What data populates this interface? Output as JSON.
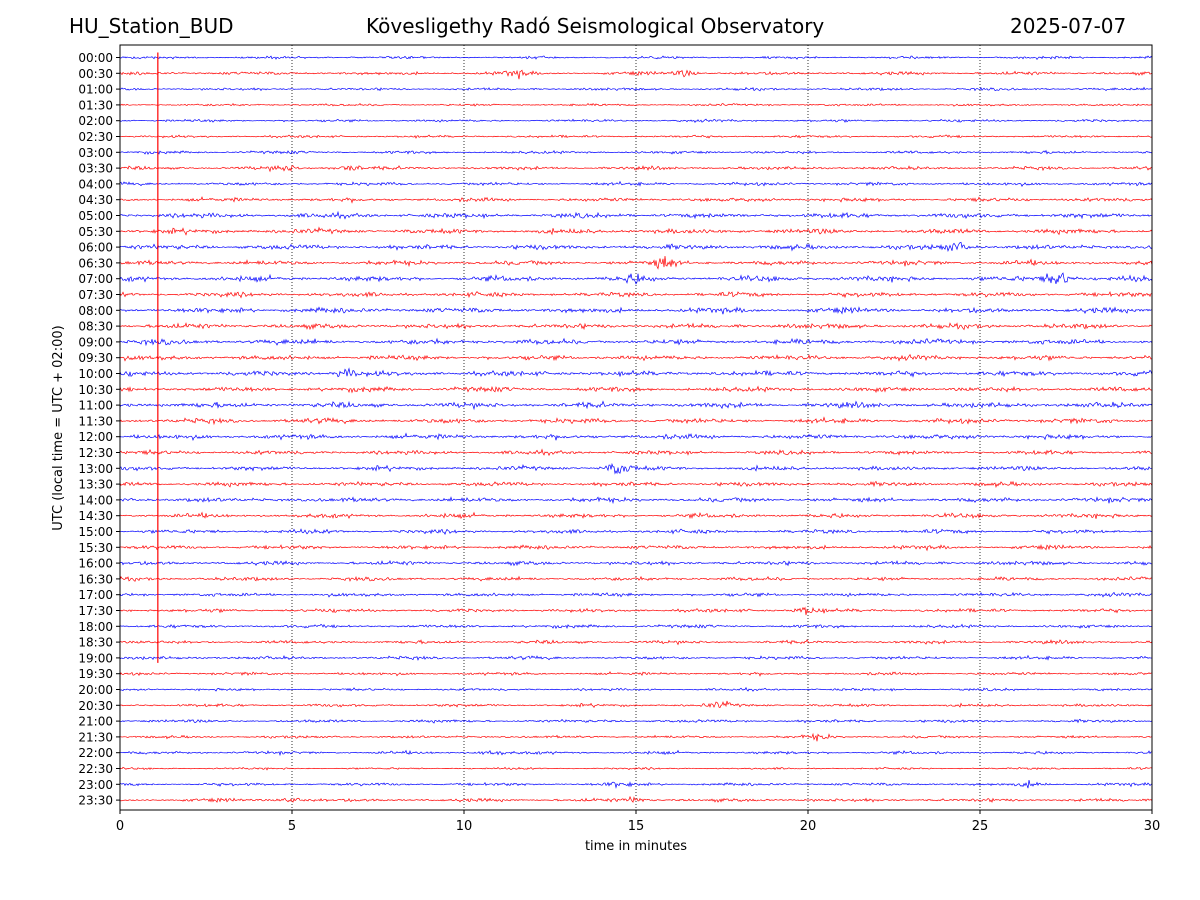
{
  "header": {
    "station": "HU_Station_BUD",
    "observatory": "Kövesligethy Radó Seismological Observatory",
    "date": "2025-07-07"
  },
  "chart_data": {
    "type": "line",
    "title": "Kövesligethy Radó Seismological Observatory",
    "xlabel": "time in minutes",
    "ylabel": "UTC (local time = UTC + 02:00)",
    "xlim": [
      0,
      30
    ],
    "xticks": [
      0,
      5,
      10,
      15,
      20,
      25,
      30
    ],
    "grid": "vertical dotted at x ticks",
    "trace_colors": [
      "#0000ff",
      "#ff0000"
    ],
    "rows": [
      "00:00",
      "00:30",
      "01:00",
      "01:30",
      "02:00",
      "02:30",
      "03:00",
      "03:30",
      "04:00",
      "04:30",
      "05:00",
      "05:30",
      "06:00",
      "06:30",
      "07:00",
      "07:30",
      "08:00",
      "08:30",
      "09:00",
      "09:30",
      "10:00",
      "10:30",
      "11:00",
      "11:30",
      "12:00",
      "12:30",
      "13:00",
      "13:30",
      "14:00",
      "14:30",
      "15:00",
      "15:30",
      "16:00",
      "16:30",
      "17:00",
      "17:30",
      "18:00",
      "18:30",
      "19:00",
      "19:30",
      "20:00",
      "20:30",
      "21:00",
      "21:30",
      "22:00",
      "22:30",
      "23:00",
      "23:30"
    ],
    "noise_level": [
      0.8,
      1.0,
      0.8,
      0.7,
      0.8,
      0.8,
      0.9,
      1.0,
      1.0,
      1.2,
      1.5,
      1.5,
      1.5,
      1.4,
      1.6,
      1.4,
      1.6,
      1.5,
      1.6,
      1.5,
      1.6,
      1.5,
      1.6,
      1.5,
      1.5,
      1.3,
      1.3,
      1.3,
      1.4,
      1.3,
      1.2,
      1.2,
      1.2,
      1.1,
      1.1,
      1.1,
      1.0,
      1.0,
      1.0,
      0.9,
      0.8,
      0.9,
      0.9,
      0.8,
      0.9,
      0.6,
      0.9,
      1.0
    ],
    "events": [
      {
        "row": "00:30",
        "minute": 11.5,
        "amplitude": 1.8
      },
      {
        "row": "00:30",
        "minute": 16.4,
        "amplitude": 1.8
      },
      {
        "row": "03:30",
        "minute": 4.8,
        "amplitude": 1.8
      },
      {
        "row": "03:30",
        "minute": 6.6,
        "amplitude": 2.2
      },
      {
        "row": "06:00",
        "minute": 24.3,
        "amplitude": 2.6
      },
      {
        "row": "06:30",
        "minute": 15.8,
        "amplitude": 3.5
      },
      {
        "row": "07:00",
        "minute": 15.0,
        "amplitude": 2.2
      },
      {
        "row": "07:00",
        "minute": 27.3,
        "amplitude": 5.0
      },
      {
        "row": "10:00",
        "minute": 6.6,
        "amplitude": 2.4
      },
      {
        "row": "13:00",
        "minute": 14.5,
        "amplitude": 3.8
      },
      {
        "row": "17:30",
        "minute": 20.0,
        "amplitude": 2.6
      },
      {
        "row": "20:30",
        "minute": 17.4,
        "amplitude": 1.6
      },
      {
        "row": "21:30",
        "minute": 20.3,
        "amplitude": 1.6
      },
      {
        "row": "22:00",
        "minute": 10.8,
        "amplitude": 1.6
      },
      {
        "row": "23:00",
        "minute": 14.5,
        "amplitude": 1.5
      },
      {
        "row": "23:00",
        "minute": 26.5,
        "amplitude": 1.6
      },
      {
        "row": "23:30",
        "minute": 5.0,
        "amplitude": 2.0
      },
      {
        "row": "23:30",
        "minute": 15.0,
        "amplitude": 1.6
      }
    ],
    "spike_line": {
      "minute": 1.1,
      "color": "#ff0000",
      "from_row": "00:00",
      "to_row": "19:00"
    }
  }
}
